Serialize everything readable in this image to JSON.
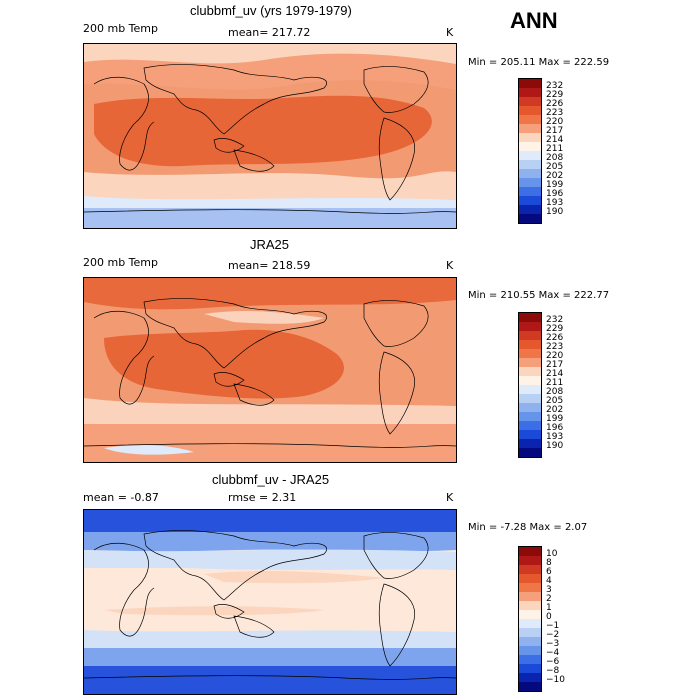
{
  "header": {
    "title": "ANN"
  },
  "panels": [
    {
      "title": "clubbmf_uv (yrs 1979-1979)",
      "left_label": "200 mb Temp",
      "center_label": "mean=  217.72",
      "units": "K",
      "minmax": "Min = 205.11  Max = 222.59",
      "colorbar_labels": [
        "232",
        "229",
        "226",
        "223",
        "220",
        "217",
        "214",
        "211",
        "208",
        "205",
        "202",
        "199",
        "196",
        "193",
        "190"
      ],
      "colorbar_colors": [
        "#8b0a0a",
        "#b01818",
        "#d03a22",
        "#e5582e",
        "#f07648",
        "#f5a07a",
        "#fbd5bd",
        "#fff2e6",
        "#dfebfa",
        "#b8d0f4",
        "#8fb2ee",
        "#6694ea",
        "#3c6ee6",
        "#1c4ad8",
        "#0a24b0",
        "#040a7e"
      ],
      "bands": [
        {
          "name": "tropics",
          "color": "#e66638"
        },
        {
          "name": "subtropics",
          "color": "#f29a72"
        },
        {
          "name": "high-latitudes",
          "color": "#fddcc7"
        },
        {
          "name": "south-pole",
          "color": "#a7c2f2"
        }
      ]
    },
    {
      "title": "JRA25",
      "left_label": "200 mb Temp",
      "center_label": "mean=  218.59",
      "units": "K",
      "minmax": "Min = 210.55  Max = 222.77",
      "colorbar_labels": [
        "232",
        "229",
        "226",
        "223",
        "220",
        "217",
        "214",
        "211",
        "208",
        "205",
        "202",
        "199",
        "196",
        "193",
        "190"
      ],
      "colorbar_colors": [
        "#8b0a0a",
        "#b01818",
        "#d03a22",
        "#e5582e",
        "#f07648",
        "#f5a07a",
        "#fbd5bd",
        "#fff2e6",
        "#dfebfa",
        "#b8d0f4",
        "#8fb2ee",
        "#6694ea",
        "#3c6ee6",
        "#1c4ad8",
        "#0a24b0",
        "#040a7e"
      ],
      "bands": [
        {
          "name": "north-high",
          "color": "#e86a3c"
        },
        {
          "name": "mid",
          "color": "#f29a72"
        },
        {
          "name": "warm-pool",
          "color": "#e66638"
        },
        {
          "name": "south",
          "color": "#fbd2bb"
        }
      ]
    },
    {
      "title": "clubbmf_uv - JRA25",
      "left_label": "mean =   -0.87",
      "center_label": "rmse =    2.31",
      "units": "K",
      "minmax": "Min =  -7.28  Max =    2.07",
      "colorbar_labels": [
        "10",
        "8",
        "6",
        "4",
        "3",
        "2",
        "1",
        "0",
        "−1",
        "−2",
        "−3",
        "−4",
        "−6",
        "−8",
        "−10"
      ],
      "colorbar_colors": [
        "#8b0a0a",
        "#b01818",
        "#d03a22",
        "#e5582e",
        "#f07648",
        "#f5a07a",
        "#fbd5bd",
        "#fff2e6",
        "#dfebfa",
        "#b8d0f4",
        "#8fb2ee",
        "#6694ea",
        "#3c6ee6",
        "#1c4ad8",
        "#0a24b0",
        "#040a7e"
      ],
      "bands": [
        {
          "name": "poles",
          "color": "#2652dc"
        },
        {
          "name": "midlat",
          "color": "#7ea4ee"
        },
        {
          "name": "subtropics",
          "color": "#d4e2f8"
        },
        {
          "name": "tropics",
          "color": "#fde8da"
        }
      ]
    }
  ]
}
